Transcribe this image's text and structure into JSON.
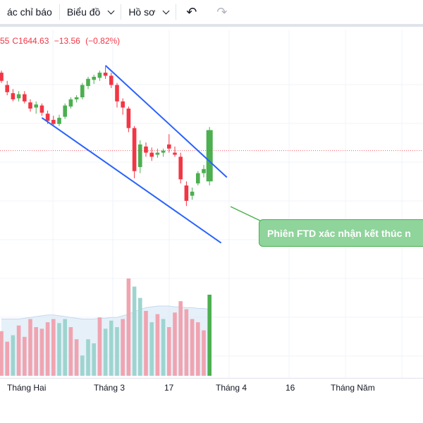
{
  "toolbar": {
    "indicators_label": "ác chỉ báo",
    "chart_label": "Biểu đồ",
    "profile_label": "Hồ sơ",
    "undo_icon": "undo-icon",
    "redo_icon": "redo-icon"
  },
  "ohlc": {
    "prev_fragment": "55",
    "close_label": "C",
    "close_value": "1644.63",
    "change": "−13.56",
    "change_pct": "(−0.82%)"
  },
  "annotation": {
    "text": "Phiên FTD xác nhận kết thúc n"
  },
  "x_axis": {
    "labels": [
      "Tháng Hai",
      "Tháng 3",
      "17",
      "Tháng 4",
      "16",
      "Tháng Năm"
    ]
  },
  "colors": {
    "up": "#4caf50",
    "down": "#f23645",
    "vol_up": "#9ed4cf",
    "vol_down": "#f0a4b0",
    "trendline": "#2962ff",
    "callout_bg": "#8fd49b",
    "price_line": "#f23645"
  },
  "chart_data": {
    "type": "candlestick",
    "candles": [
      {
        "o": 1658,
        "h": 1660,
        "l": 1648,
        "c": 1650
      },
      {
        "o": 1646,
        "h": 1650,
        "l": 1636,
        "c": 1639
      },
      {
        "o": 1638,
        "h": 1642,
        "l": 1630,
        "c": 1632
      },
      {
        "o": 1633,
        "h": 1640,
        "l": 1630,
        "c": 1637
      },
      {
        "o": 1637,
        "h": 1640,
        "l": 1628,
        "c": 1630
      },
      {
        "o": 1629,
        "h": 1632,
        "l": 1620,
        "c": 1623
      },
      {
        "o": 1624,
        "h": 1630,
        "l": 1618,
        "c": 1627
      },
      {
        "o": 1626,
        "h": 1628,
        "l": 1616,
        "c": 1619
      },
      {
        "o": 1618,
        "h": 1621,
        "l": 1608,
        "c": 1611
      },
      {
        "o": 1612,
        "h": 1616,
        "l": 1606,
        "c": 1608
      },
      {
        "o": 1608,
        "h": 1617,
        "l": 1606,
        "c": 1614
      },
      {
        "o": 1615,
        "h": 1628,
        "l": 1613,
        "c": 1626
      },
      {
        "o": 1625,
        "h": 1634,
        "l": 1623,
        "c": 1632
      },
      {
        "o": 1632,
        "h": 1636,
        "l": 1629,
        "c": 1634
      },
      {
        "o": 1634,
        "h": 1648,
        "l": 1632,
        "c": 1646
      },
      {
        "o": 1645,
        "h": 1654,
        "l": 1642,
        "c": 1652
      },
      {
        "o": 1651,
        "h": 1656,
        "l": 1647,
        "c": 1654
      },
      {
        "o": 1653,
        "h": 1660,
        "l": 1650,
        "c": 1658
      },
      {
        "o": 1658,
        "h": 1664,
        "l": 1652,
        "c": 1655
      },
      {
        "o": 1655,
        "h": 1658,
        "l": 1643,
        "c": 1646
      },
      {
        "o": 1646,
        "h": 1648,
        "l": 1624,
        "c": 1630
      },
      {
        "o": 1630,
        "h": 1633,
        "l": 1617,
        "c": 1624
      },
      {
        "o": 1623,
        "h": 1625,
        "l": 1600,
        "c": 1604
      },
      {
        "o": 1604,
        "h": 1606,
        "l": 1555,
        "c": 1562
      },
      {
        "o": 1566,
        "h": 1592,
        "l": 1560,
        "c": 1588
      },
      {
        "o": 1586,
        "h": 1590,
        "l": 1576,
        "c": 1580
      },
      {
        "o": 1580,
        "h": 1585,
        "l": 1572,
        "c": 1576
      },
      {
        "o": 1578,
        "h": 1584,
        "l": 1575,
        "c": 1580
      },
      {
        "o": 1580,
        "h": 1584,
        "l": 1576,
        "c": 1582
      },
      {
        "o": 1588,
        "h": 1598,
        "l": 1580,
        "c": 1584
      },
      {
        "o": 1580,
        "h": 1586,
        "l": 1576,
        "c": 1578
      },
      {
        "o": 1576,
        "h": 1580,
        "l": 1550,
        "c": 1554
      },
      {
        "o": 1548,
        "h": 1552,
        "l": 1528,
        "c": 1533
      },
      {
        "o": 1538,
        "h": 1546,
        "l": 1534,
        "c": 1542
      },
      {
        "o": 1550,
        "h": 1562,
        "l": 1548,
        "c": 1560
      },
      {
        "o": 1560,
        "h": 1568,
        "l": 1556,
        "c": 1564
      },
      {
        "o": 1552,
        "h": 1605,
        "l": 1548,
        "c": 1602
      }
    ],
    "volumes": [
      {
        "v": 55,
        "up": false
      },
      {
        "v": 42,
        "up": false
      },
      {
        "v": 50,
        "up": true
      },
      {
        "v": 62,
        "up": false
      },
      {
        "v": 48,
        "up": false
      },
      {
        "v": 70,
        "up": false
      },
      {
        "v": 60,
        "up": false
      },
      {
        "v": 58,
        "up": false
      },
      {
        "v": 66,
        "up": false
      },
      {
        "v": 70,
        "up": false
      },
      {
        "v": 65,
        "up": true
      },
      {
        "v": 70,
        "up": true
      },
      {
        "v": 60,
        "up": false
      },
      {
        "v": 45,
        "up": false
      },
      {
        "v": 25,
        "up": true
      },
      {
        "v": 45,
        "up": true
      },
      {
        "v": 40,
        "up": true
      },
      {
        "v": 72,
        "up": false
      },
      {
        "v": 58,
        "up": true
      },
      {
        "v": 68,
        "up": true
      },
      {
        "v": 60,
        "up": true
      },
      {
        "v": 70,
        "up": false
      },
      {
        "v": 120,
        "up": false
      },
      {
        "v": 110,
        "up": true
      },
      {
        "v": 96,
        "up": true
      },
      {
        "v": 80,
        "up": false
      },
      {
        "v": 66,
        "up": true
      },
      {
        "v": 76,
        "up": false
      },
      {
        "v": 70,
        "up": true
      },
      {
        "v": 60,
        "up": false
      },
      {
        "v": 78,
        "up": false
      },
      {
        "v": 92,
        "up": false
      },
      {
        "v": 82,
        "up": false
      },
      {
        "v": 70,
        "up": false
      },
      {
        "v": 66,
        "up": false
      },
      {
        "v": 56,
        "up": false
      },
      {
        "v": 100,
        "up": true
      }
    ],
    "ma_volume": [
      70,
      70,
      70,
      70,
      71,
      72,
      73,
      74,
      75,
      75,
      74,
      73,
      72,
      71,
      70,
      70,
      70,
      71,
      71,
      72,
      72,
      74,
      76,
      79,
      82,
      84,
      85,
      86,
      86,
      86,
      85,
      85,
      84,
      84,
      83,
      83,
      82
    ],
    "trendlines": [
      {
        "from": [
          18,
          1665
        ],
        "to": [
          39,
          1556
        ]
      },
      {
        "from": [
          7,
          1614
        ],
        "to": [
          38,
          1492
        ]
      }
    ],
    "reference_price": 1582
  }
}
